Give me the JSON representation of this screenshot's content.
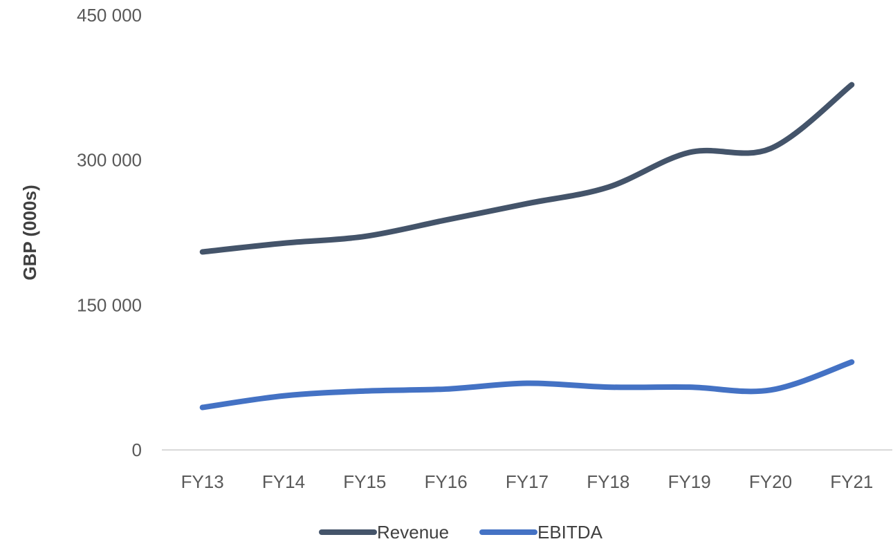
{
  "chart_data": {
    "type": "line",
    "title": "",
    "xlabel": "",
    "ylabel": "GBP (000s)",
    "categories": [
      "FY13",
      "FY14",
      "FY15",
      "FY16",
      "FY17",
      "FY18",
      "FY19",
      "FY20",
      "FY21"
    ],
    "y_ticks": [
      "0",
      "150 000",
      "300 000",
      "450 000"
    ],
    "y_tick_values": [
      0,
      150000,
      300000,
      450000
    ],
    "ylim": [
      0,
      450000
    ],
    "grid": false,
    "smooth": true,
    "legend_position": "bottom",
    "series": [
      {
        "name": "Revenue",
        "color": "#44546A",
        "values": [
          205000,
          214000,
          221000,
          238000,
          255000,
          272000,
          308000,
          312000,
          378000
        ]
      },
      {
        "name": "EBITDA",
        "color": "#4472C4",
        "values": [
          44000,
          56000,
          61000,
          63000,
          69000,
          65000,
          65000,
          62000,
          91000
        ]
      }
    ]
  }
}
